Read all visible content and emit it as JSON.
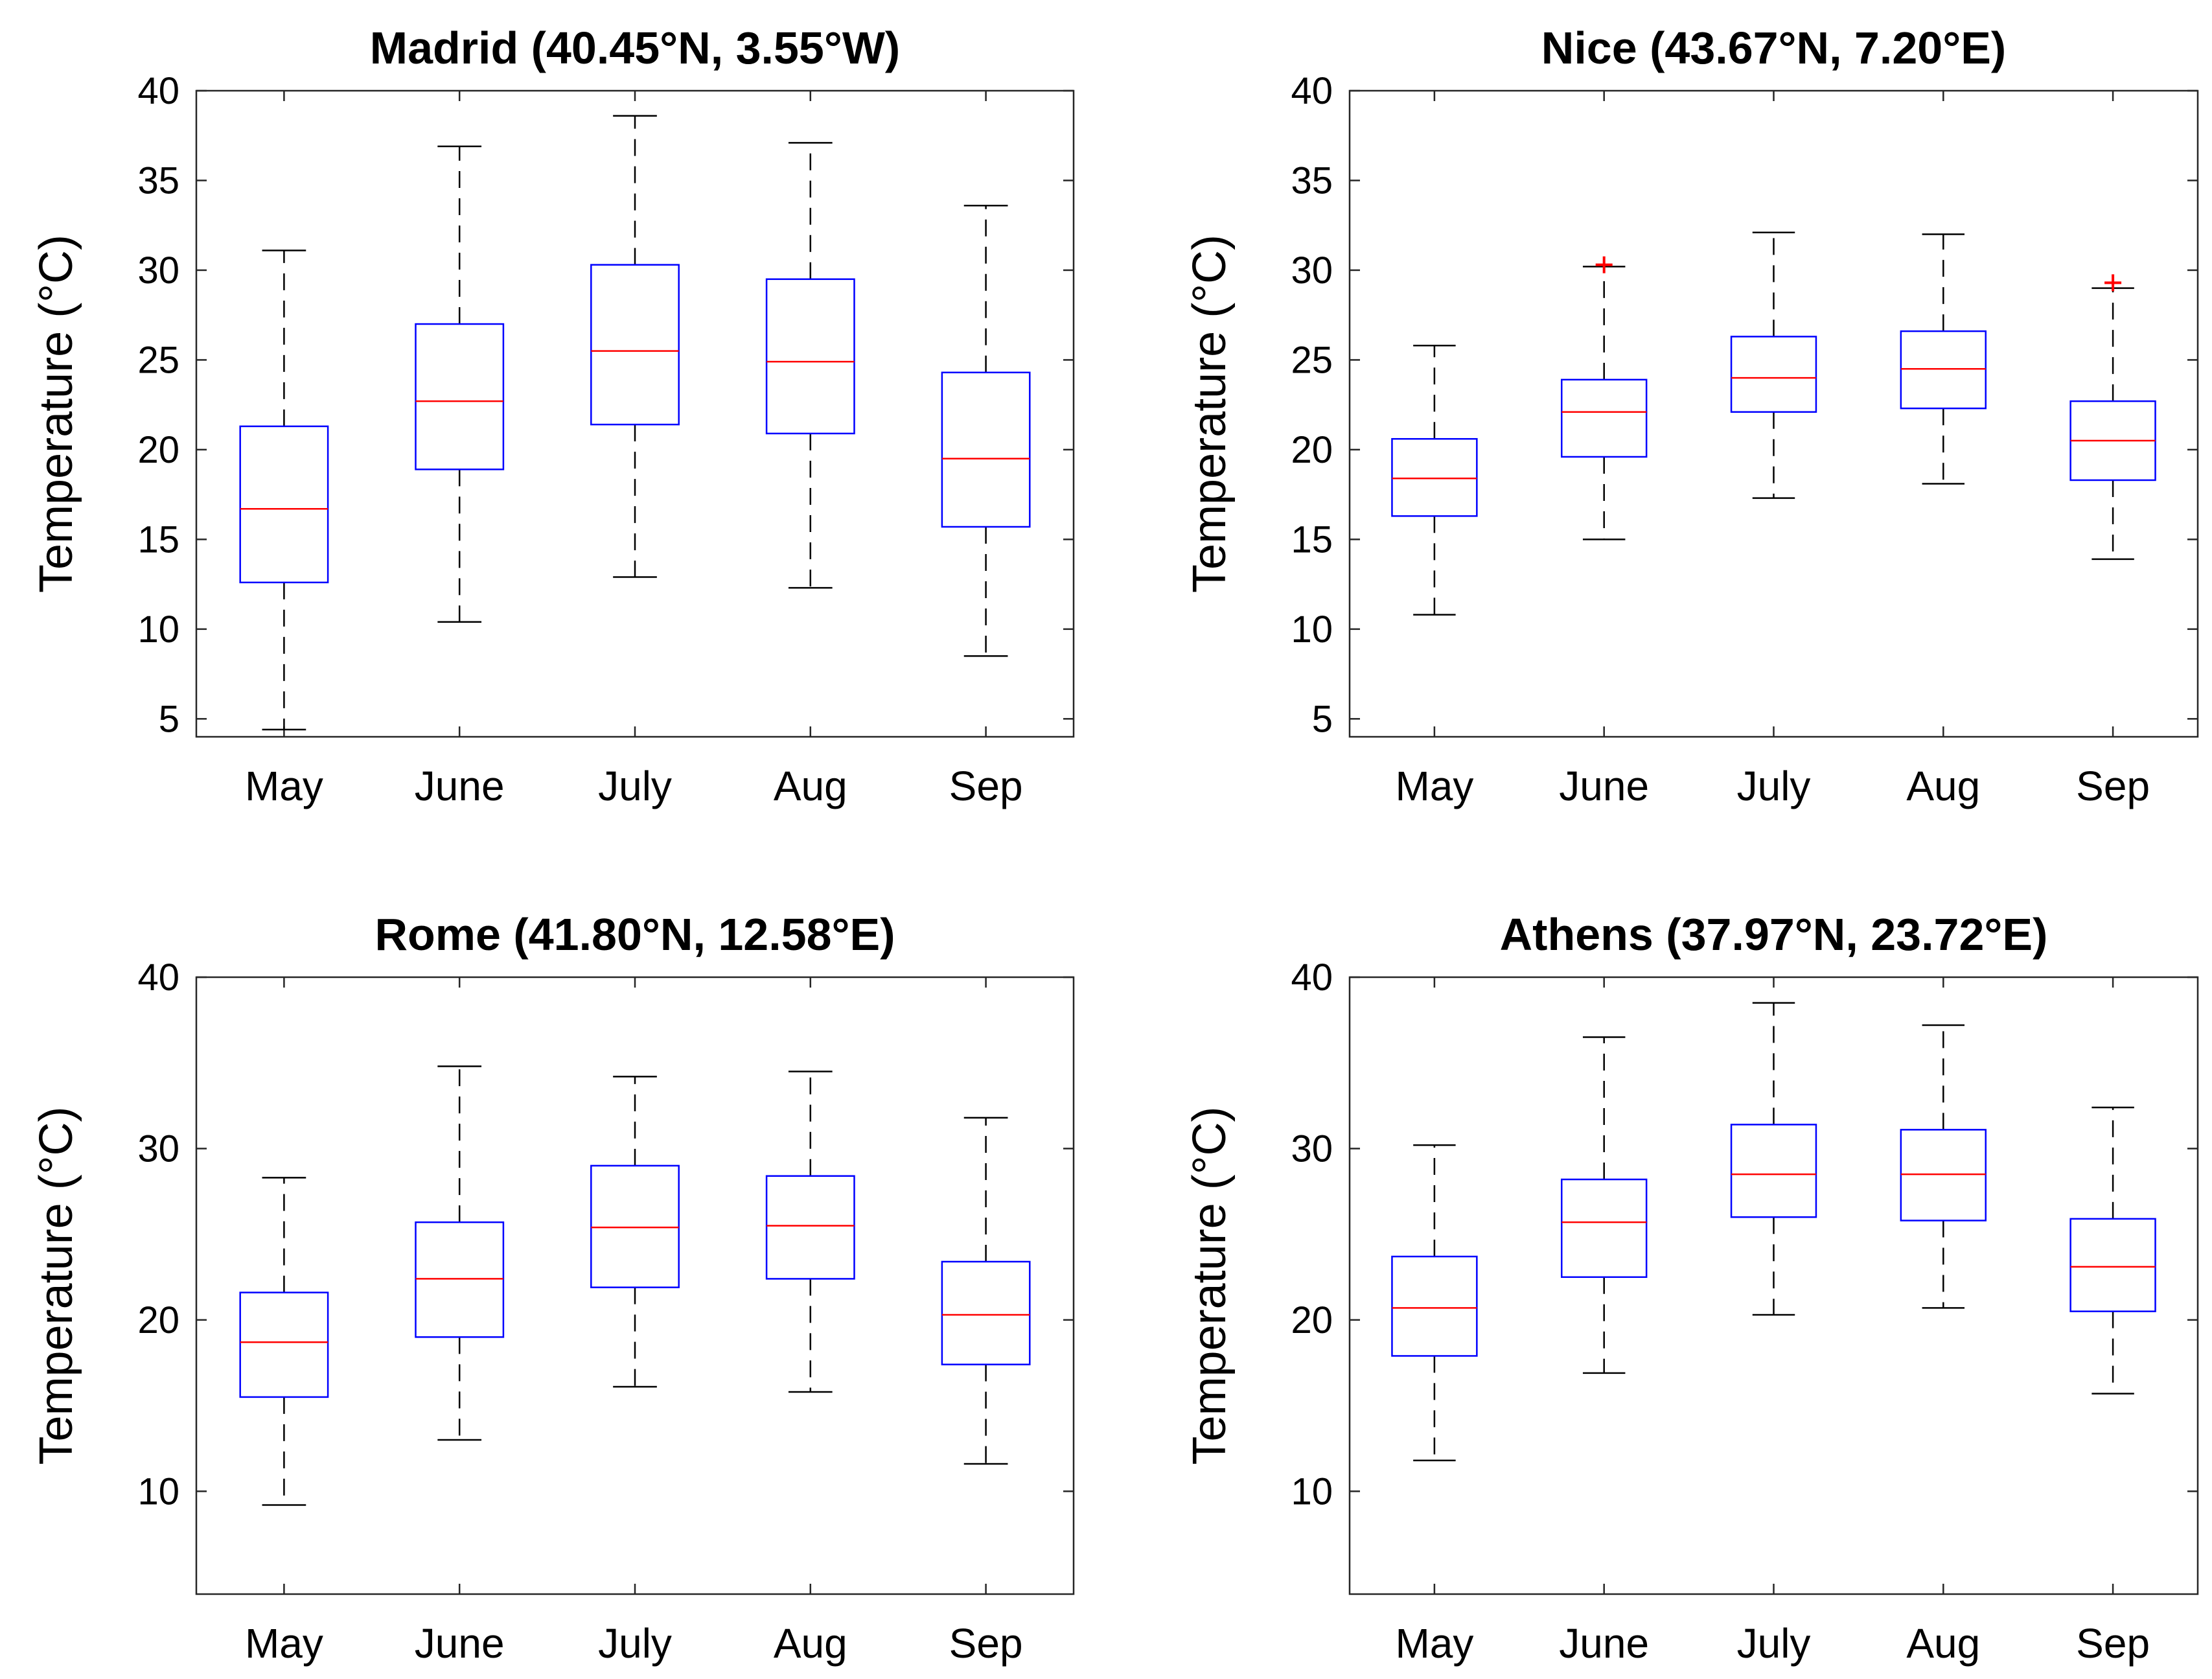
{
  "chart_data": [
    {
      "type": "boxplot",
      "title": "Madrid (40.45°N, 3.55°W)",
      "ylabel": "Temperature (°C)",
      "xlabel": "",
      "ylim": [
        4,
        40
      ],
      "yticks": [
        5,
        10,
        15,
        20,
        25,
        30,
        35,
        40
      ],
      "categories": [
        "May",
        "June",
        "July",
        "Aug",
        "Sep"
      ],
      "boxes": [
        {
          "whisker_low": 4.4,
          "q1": 12.6,
          "median": 16.7,
          "q3": 21.3,
          "whisker_high": 31.1,
          "outliers": []
        },
        {
          "whisker_low": 10.4,
          "q1": 18.9,
          "median": 22.7,
          "q3": 27.0,
          "whisker_high": 36.9,
          "outliers": []
        },
        {
          "whisker_low": 12.9,
          "q1": 21.4,
          "median": 25.5,
          "q3": 30.3,
          "whisker_high": 38.6,
          "outliers": []
        },
        {
          "whisker_low": 12.3,
          "q1": 20.9,
          "median": 24.9,
          "q3": 29.5,
          "whisker_high": 37.1,
          "outliers": []
        },
        {
          "whisker_low": 8.5,
          "q1": 15.7,
          "median": 19.5,
          "q3": 24.3,
          "whisker_high": 33.6,
          "outliers": []
        }
      ]
    },
    {
      "type": "boxplot",
      "title": "Nice (43.67°N, 7.20°E)",
      "ylabel": "Temperature (°C)",
      "xlabel": "",
      "ylim": [
        4,
        40
      ],
      "yticks": [
        5,
        10,
        15,
        20,
        25,
        30,
        35,
        40
      ],
      "categories": [
        "May",
        "June",
        "July",
        "Aug",
        "Sep"
      ],
      "boxes": [
        {
          "whisker_low": 10.8,
          "q1": 16.3,
          "median": 18.4,
          "q3": 20.6,
          "whisker_high": 25.8,
          "outliers": []
        },
        {
          "whisker_low": 15.0,
          "q1": 19.6,
          "median": 22.1,
          "q3": 23.9,
          "whisker_high": 30.2,
          "outliers": [
            30.3
          ]
        },
        {
          "whisker_low": 17.3,
          "q1": 22.1,
          "median": 24.0,
          "q3": 26.3,
          "whisker_high": 32.1,
          "outliers": []
        },
        {
          "whisker_low": 18.1,
          "q1": 22.3,
          "median": 24.5,
          "q3": 26.6,
          "whisker_high": 32.0,
          "outliers": []
        },
        {
          "whisker_low": 13.9,
          "q1": 18.3,
          "median": 20.5,
          "q3": 22.7,
          "whisker_high": 29.0,
          "outliers": [
            29.3
          ]
        }
      ]
    },
    {
      "type": "boxplot",
      "title": "Rome (41.80°N, 12.58°E)",
      "ylabel": "Temperature (°C)",
      "xlabel": "",
      "ylim": [
        4,
        40
      ],
      "yticks": [
        10,
        20,
        30,
        40
      ],
      "categories": [
        "May",
        "June",
        "July",
        "Aug",
        "Sep"
      ],
      "boxes": [
        {
          "whisker_low": 9.2,
          "q1": 15.5,
          "median": 18.7,
          "q3": 21.6,
          "whisker_high": 28.3,
          "outliers": []
        },
        {
          "whisker_low": 13.0,
          "q1": 19.0,
          "median": 22.4,
          "q3": 25.7,
          "whisker_high": 34.8,
          "outliers": []
        },
        {
          "whisker_low": 16.1,
          "q1": 21.9,
          "median": 25.4,
          "q3": 29.0,
          "whisker_high": 34.2,
          "outliers": []
        },
        {
          "whisker_low": 15.8,
          "q1": 22.4,
          "median": 25.5,
          "q3": 28.4,
          "whisker_high": 34.5,
          "outliers": []
        },
        {
          "whisker_low": 11.6,
          "q1": 17.4,
          "median": 20.3,
          "q3": 23.4,
          "whisker_high": 31.8,
          "outliers": []
        }
      ]
    },
    {
      "type": "boxplot",
      "title": "Athens (37.97°N, 23.72°E)",
      "ylabel": "Temperature (°C)",
      "xlabel": "",
      "ylim": [
        4,
        40
      ],
      "yticks": [
        10,
        20,
        30,
        40
      ],
      "categories": [
        "May",
        "June",
        "July",
        "Aug",
        "Sep"
      ],
      "boxes": [
        {
          "whisker_low": 11.8,
          "q1": 17.9,
          "median": 20.7,
          "q3": 23.7,
          "whisker_high": 30.2,
          "outliers": []
        },
        {
          "whisker_low": 16.9,
          "q1": 22.5,
          "median": 25.7,
          "q3": 28.2,
          "whisker_high": 36.5,
          "outliers": []
        },
        {
          "whisker_low": 20.3,
          "q1": 26.0,
          "median": 28.5,
          "q3": 31.4,
          "whisker_high": 38.5,
          "outliers": []
        },
        {
          "whisker_low": 20.7,
          "q1": 25.8,
          "median": 28.5,
          "q3": 31.1,
          "whisker_high": 37.2,
          "outliers": []
        },
        {
          "whisker_low": 15.7,
          "q1": 20.5,
          "median": 23.1,
          "q3": 25.9,
          "whisker_high": 32.4,
          "outliers": []
        }
      ]
    }
  ],
  "colors": {
    "box": "#0000ff",
    "median": "#ff0000",
    "whisker": "#000000",
    "outlier": "#ff0000",
    "axes": "#262626",
    "text": "#000000"
  }
}
